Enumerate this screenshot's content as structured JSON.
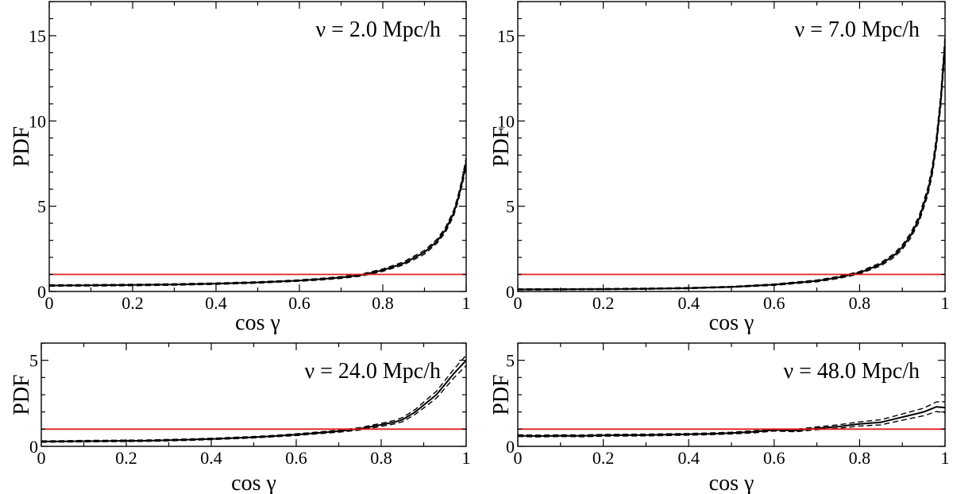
{
  "chart_data": [
    {
      "type": "line",
      "annotation": "ν = 2.0 Mpc/h",
      "xlabel": "cos γ",
      "ylabel": "PDF",
      "xlim": [
        0,
        1
      ],
      "ylim": [
        0,
        17
      ],
      "xticks": [
        0,
        0.2,
        0.4,
        0.6,
        0.8,
        1
      ],
      "xtick_labels": [
        "0",
        "0.2",
        "0.4",
        "0.6",
        "0.8",
        "1"
      ],
      "yticks": [
        0,
        5,
        10,
        15
      ],
      "ytick_labels": [
        "0",
        "5",
        "10",
        "15"
      ],
      "grid": false,
      "series": [
        {
          "role": "mean",
          "color": "#000000",
          "style": "solid",
          "x": [
            0,
            0.1,
            0.2,
            0.3,
            0.4,
            0.5,
            0.6,
            0.65,
            0.7,
            0.75,
            0.8,
            0.85,
            0.9,
            0.93,
            0.95,
            0.97,
            0.98,
            0.99,
            1.0
          ],
          "y": [
            0.35,
            0.36,
            0.38,
            0.41,
            0.46,
            0.53,
            0.64,
            0.72,
            0.82,
            0.97,
            1.25,
            1.65,
            2.3,
            2.95,
            3.6,
            4.6,
            5.4,
            6.4,
            7.6
          ]
        },
        {
          "role": "upper",
          "color": "#000000",
          "style": "dashed",
          "x": [
            0,
            0.1,
            0.2,
            0.3,
            0.4,
            0.5,
            0.6,
            0.65,
            0.7,
            0.75,
            0.8,
            0.85,
            0.9,
            0.93,
            0.95,
            0.97,
            0.98,
            0.99,
            1.0
          ],
          "y": [
            0.39,
            0.4,
            0.42,
            0.45,
            0.5,
            0.57,
            0.68,
            0.77,
            0.87,
            1.03,
            1.32,
            1.74,
            2.41,
            3.07,
            3.74,
            4.76,
            5.58,
            6.6,
            7.85
          ]
        },
        {
          "role": "lower",
          "color": "#000000",
          "style": "dashed",
          "x": [
            0,
            0.1,
            0.2,
            0.3,
            0.4,
            0.5,
            0.6,
            0.65,
            0.7,
            0.75,
            0.8,
            0.85,
            0.9,
            0.93,
            0.95,
            0.97,
            0.98,
            0.99,
            1.0
          ],
          "y": [
            0.31,
            0.32,
            0.34,
            0.37,
            0.42,
            0.49,
            0.6,
            0.67,
            0.77,
            0.91,
            1.18,
            1.56,
            2.19,
            2.83,
            3.46,
            4.44,
            5.22,
            6.2,
            7.35
          ]
        },
        {
          "role": "uniform",
          "color": "#e0201a",
          "style": "solid",
          "x": [
            0,
            1
          ],
          "y": [
            1,
            1
          ]
        }
      ]
    },
    {
      "type": "line",
      "annotation": "ν = 7.0 Mpc/h",
      "xlabel": "cos γ",
      "ylabel": "PDF",
      "xlim": [
        0,
        1
      ],
      "ylim": [
        0,
        17
      ],
      "xticks": [
        0,
        0.2,
        0.4,
        0.6,
        0.8,
        1
      ],
      "xtick_labels": [
        "0",
        "0.2",
        "0.4",
        "0.6",
        "0.8",
        "1"
      ],
      "yticks": [
        0,
        5,
        10,
        15
      ],
      "ytick_labels": [
        "0",
        "5",
        "10",
        "15"
      ],
      "grid": false,
      "series": [
        {
          "role": "mean",
          "color": "#000000",
          "style": "solid",
          "x": [
            0,
            0.1,
            0.2,
            0.3,
            0.4,
            0.5,
            0.6,
            0.7,
            0.75,
            0.8,
            0.85,
            0.88,
            0.9,
            0.92,
            0.94,
            0.96,
            0.97,
            0.98,
            0.99,
            1.0
          ],
          "y": [
            0.12,
            0.13,
            0.14,
            0.16,
            0.2,
            0.27,
            0.4,
            0.62,
            0.82,
            1.1,
            1.6,
            2.1,
            2.6,
            3.3,
            4.3,
            5.9,
            7.1,
            8.8,
            11.2,
            14.6
          ]
        },
        {
          "role": "upper",
          "color": "#000000",
          "style": "dashed",
          "x": [
            0,
            0.1,
            0.2,
            0.3,
            0.4,
            0.5,
            0.6,
            0.7,
            0.75,
            0.8,
            0.85,
            0.88,
            0.9,
            0.92,
            0.94,
            0.96,
            0.97,
            0.98,
            0.99,
            1.0
          ],
          "y": [
            0.15,
            0.16,
            0.17,
            0.19,
            0.23,
            0.3,
            0.44,
            0.67,
            0.88,
            1.17,
            1.69,
            2.21,
            2.73,
            3.45,
            4.48,
            6.12,
            7.35,
            9.1,
            11.55,
            15.0
          ]
        },
        {
          "role": "lower",
          "color": "#000000",
          "style": "dashed",
          "x": [
            0,
            0.1,
            0.2,
            0.3,
            0.4,
            0.5,
            0.6,
            0.7,
            0.75,
            0.8,
            0.85,
            0.88,
            0.9,
            0.92,
            0.94,
            0.96,
            0.97,
            0.98,
            0.99,
            1.0
          ],
          "y": [
            0.09,
            0.1,
            0.11,
            0.13,
            0.17,
            0.24,
            0.36,
            0.57,
            0.76,
            1.03,
            1.51,
            1.99,
            2.47,
            3.15,
            4.12,
            5.68,
            6.85,
            8.5,
            10.85,
            14.2
          ]
        },
        {
          "role": "uniform",
          "color": "#e0201a",
          "style": "solid",
          "x": [
            0,
            1
          ],
          "y": [
            1,
            1
          ]
        }
      ]
    },
    {
      "type": "line",
      "annotation": "ν = 24.0 Mpc/h",
      "xlabel": "cos γ",
      "ylabel": "PDF",
      "xlim": [
        0,
        1
      ],
      "ylim": [
        0,
        6
      ],
      "xticks": [
        0,
        0.2,
        0.4,
        0.6,
        0.8,
        1
      ],
      "xtick_labels": [
        "0",
        "0.2",
        "0.4",
        "0.6",
        "0.8",
        "1"
      ],
      "yticks": [
        0,
        5
      ],
      "ytick_labels": [
        "0",
        "5"
      ],
      "grid": false,
      "series": [
        {
          "role": "mean",
          "color": "#000000",
          "style": "solid",
          "x": [
            0,
            0.05,
            0.1,
            0.15,
            0.2,
            0.25,
            0.3,
            0.35,
            0.4,
            0.45,
            0.5,
            0.55,
            0.6,
            0.65,
            0.7,
            0.75,
            0.8,
            0.83,
            0.85,
            0.88,
            0.9,
            0.93,
            0.95,
            0.97,
            1.0
          ],
          "y": [
            0.28,
            0.29,
            0.3,
            0.31,
            0.32,
            0.33,
            0.36,
            0.39,
            0.43,
            0.48,
            0.53,
            0.6,
            0.68,
            0.78,
            0.88,
            1.02,
            1.25,
            1.4,
            1.55,
            2.0,
            2.4,
            3.0,
            3.6,
            4.2,
            5.0
          ]
        },
        {
          "role": "upper",
          "color": "#000000",
          "style": "dashed",
          "x": [
            0,
            0.05,
            0.1,
            0.15,
            0.2,
            0.25,
            0.3,
            0.35,
            0.4,
            0.45,
            0.5,
            0.55,
            0.6,
            0.65,
            0.7,
            0.75,
            0.8,
            0.83,
            0.85,
            0.88,
            0.9,
            0.93,
            0.95,
            0.97,
            1.0
          ],
          "y": [
            0.32,
            0.33,
            0.34,
            0.35,
            0.36,
            0.37,
            0.4,
            0.43,
            0.47,
            0.52,
            0.57,
            0.64,
            0.73,
            0.83,
            0.94,
            1.09,
            1.34,
            1.5,
            1.67,
            2.14,
            2.57,
            3.2,
            3.83,
            4.45,
            5.3
          ]
        },
        {
          "role": "lower",
          "color": "#000000",
          "style": "dashed",
          "x": [
            0,
            0.05,
            0.1,
            0.15,
            0.2,
            0.25,
            0.3,
            0.35,
            0.4,
            0.45,
            0.5,
            0.55,
            0.6,
            0.65,
            0.7,
            0.75,
            0.8,
            0.83,
            0.85,
            0.88,
            0.9,
            0.93,
            0.95,
            0.97,
            1.0
          ],
          "y": [
            0.24,
            0.25,
            0.26,
            0.27,
            0.28,
            0.29,
            0.32,
            0.35,
            0.39,
            0.44,
            0.49,
            0.56,
            0.63,
            0.73,
            0.82,
            0.95,
            1.16,
            1.3,
            1.43,
            1.86,
            2.23,
            2.8,
            3.37,
            3.95,
            4.7
          ]
        },
        {
          "role": "uniform",
          "color": "#e0201a",
          "style": "solid",
          "x": [
            0,
            1
          ],
          "y": [
            1,
            1
          ]
        }
      ]
    },
    {
      "type": "line",
      "annotation": "ν = 48.0 Mpc/h",
      "xlabel": "cos γ",
      "ylabel": "PDF",
      "xlim": [
        0,
        1
      ],
      "ylim": [
        0,
        6
      ],
      "xticks": [
        0,
        0.2,
        0.4,
        0.6,
        0.8,
        1
      ],
      "xtick_labels": [
        "0",
        "0.2",
        "0.4",
        "0.6",
        "0.8",
        "1"
      ],
      "yticks": [
        0,
        5
      ],
      "ytick_labels": [
        "0",
        "5"
      ],
      "grid": false,
      "series": [
        {
          "role": "mean",
          "color": "#000000",
          "style": "solid",
          "x": [
            0,
            0.05,
            0.1,
            0.15,
            0.2,
            0.25,
            0.3,
            0.35,
            0.4,
            0.45,
            0.5,
            0.55,
            0.6,
            0.65,
            0.7,
            0.75,
            0.8,
            0.85,
            0.9,
            0.95,
            0.98,
            1.0
          ],
          "y": [
            0.62,
            0.6,
            0.62,
            0.61,
            0.64,
            0.65,
            0.66,
            0.68,
            0.7,
            0.73,
            0.77,
            0.84,
            0.95,
            0.92,
            1.05,
            1.15,
            1.3,
            1.4,
            1.7,
            2.0,
            2.3,
            2.25
          ]
        },
        {
          "role": "upper",
          "color": "#000000",
          "style": "dashed",
          "x": [
            0,
            0.05,
            0.1,
            0.15,
            0.2,
            0.25,
            0.3,
            0.35,
            0.4,
            0.45,
            0.5,
            0.55,
            0.6,
            0.65,
            0.7,
            0.75,
            0.8,
            0.85,
            0.9,
            0.95,
            0.98,
            1.0
          ],
          "y": [
            0.67,
            0.65,
            0.67,
            0.66,
            0.69,
            0.7,
            0.71,
            0.73,
            0.75,
            0.78,
            0.82,
            0.9,
            1.01,
            0.99,
            1.13,
            1.25,
            1.42,
            1.55,
            1.88,
            2.22,
            2.58,
            2.6
          ]
        },
        {
          "role": "lower",
          "color": "#000000",
          "style": "dashed",
          "x": [
            0,
            0.05,
            0.1,
            0.15,
            0.2,
            0.25,
            0.3,
            0.35,
            0.4,
            0.45,
            0.5,
            0.55,
            0.6,
            0.65,
            0.7,
            0.75,
            0.8,
            0.85,
            0.9,
            0.95,
            0.98,
            1.0
          ],
          "y": [
            0.57,
            0.55,
            0.57,
            0.56,
            0.59,
            0.6,
            0.61,
            0.63,
            0.65,
            0.68,
            0.72,
            0.78,
            0.89,
            0.85,
            0.97,
            1.05,
            1.18,
            1.25,
            1.52,
            1.78,
            2.02,
            1.95
          ]
        },
        {
          "role": "uniform",
          "color": "#e0201a",
          "style": "solid",
          "x": [
            0,
            1
          ],
          "y": [
            1,
            1
          ]
        }
      ]
    }
  ]
}
